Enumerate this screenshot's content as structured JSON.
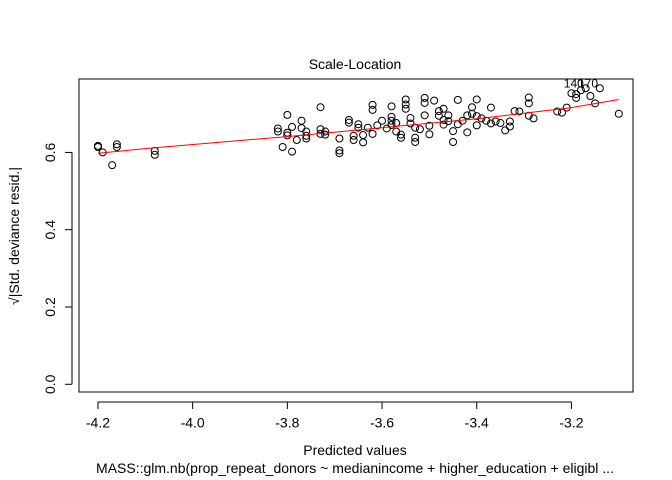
{
  "chart_data": {
    "type": "scatter",
    "title": "Scale-Location",
    "xlabel": "Predicted values",
    "ylabel": "√|Std. deviance resid.|",
    "ylabel_radicand": "Std. deviance resid.",
    "subtitle": "MASS::glm.nb(prop_repeat_donors ~ medianincome + higher_education + eligibl ...",
    "xlim": [
      -4.24,
      -3.07
    ],
    "ylim": [
      -0.02,
      0.79
    ],
    "x_ticks": [
      -4.2,
      -4.0,
      -3.8,
      -3.6,
      -3.4,
      -3.2
    ],
    "x_tick_labels": [
      "-4.2",
      "-4.0",
      "-3.8",
      "-3.6",
      "-3.4",
      "-3.2"
    ],
    "y_ticks": [
      0.0,
      0.2,
      0.4,
      0.6
    ],
    "y_tick_labels": [
      "0.0",
      "0.2",
      "0.4",
      "0.6"
    ],
    "grid": false,
    "smoother_color": "#ff0000",
    "point_color": "#000000",
    "smoother": {
      "x": [
        -4.2,
        -4.08,
        -3.8,
        -3.6,
        -3.4,
        -3.2,
        -3.1
      ],
      "y": [
        0.598,
        0.612,
        0.641,
        0.664,
        0.687,
        0.716,
        0.737
      ]
    },
    "annotations": [
      {
        "text": "140",
        "x": -3.195,
        "y": 0.768
      },
      {
        "text": "170",
        "x": -3.165,
        "y": 0.768
      }
    ],
    "points": [
      [
        -4.2,
        0.617
      ],
      [
        -4.2,
        0.614
      ],
      [
        -4.19,
        0.6
      ],
      [
        -4.17,
        0.567
      ],
      [
        -4.16,
        0.621
      ],
      [
        -4.16,
        0.614
      ],
      [
        -4.08,
        0.604
      ],
      [
        -4.08,
        0.594
      ],
      [
        -3.82,
        0.662
      ],
      [
        -3.82,
        0.654
      ],
      [
        -3.81,
        0.614
      ],
      [
        -3.8,
        0.697
      ],
      [
        -3.8,
        0.651
      ],
      [
        -3.8,
        0.644
      ],
      [
        -3.79,
        0.602
      ],
      [
        -3.79,
        0.666
      ],
      [
        -3.78,
        0.632
      ],
      [
        -3.77,
        0.682
      ],
      [
        -3.77,
        0.663
      ],
      [
        -3.76,
        0.654
      ],
      [
        -3.76,
        0.643
      ],
      [
        -3.76,
        0.636
      ],
      [
        -3.73,
        0.717
      ],
      [
        -3.73,
        0.66
      ],
      [
        -3.73,
        0.648
      ],
      [
        -3.72,
        0.654
      ],
      [
        -3.72,
        0.646
      ],
      [
        -3.69,
        0.636
      ],
      [
        -3.69,
        0.605
      ],
      [
        -3.69,
        0.598
      ],
      [
        -3.67,
        0.684
      ],
      [
        -3.67,
        0.677
      ],
      [
        -3.66,
        0.643
      ],
      [
        -3.66,
        0.632
      ],
      [
        -3.65,
        0.673
      ],
      [
        -3.65,
        0.664
      ],
      [
        -3.64,
        0.645
      ],
      [
        -3.64,
        0.626
      ],
      [
        -3.63,
        0.664
      ],
      [
        -3.62,
        0.723
      ],
      [
        -3.62,
        0.71
      ],
      [
        -3.62,
        0.648
      ],
      [
        -3.61,
        0.67
      ],
      [
        -3.6,
        0.682
      ],
      [
        -3.59,
        0.662
      ],
      [
        -3.58,
        0.719
      ],
      [
        -3.58,
        0.692
      ],
      [
        -3.58,
        0.682
      ],
      [
        -3.58,
        0.671
      ],
      [
        -3.57,
        0.654
      ],
      [
        -3.57,
        0.676
      ],
      [
        -3.56,
        0.638
      ],
      [
        -3.56,
        0.646
      ],
      [
        -3.55,
        0.737
      ],
      [
        -3.55,
        0.724
      ],
      [
        -3.55,
        0.713
      ],
      [
        -3.54,
        0.689
      ],
      [
        -3.54,
        0.675
      ],
      [
        -3.53,
        0.638
      ],
      [
        -3.53,
        0.627
      ],
      [
        -3.53,
        0.664
      ],
      [
        -3.52,
        0.66
      ],
      [
        -3.51,
        0.741
      ],
      [
        -3.51,
        0.728
      ],
      [
        -3.51,
        0.696
      ],
      [
        -3.5,
        0.669
      ],
      [
        -3.5,
        0.647
      ],
      [
        -3.49,
        0.734
      ],
      [
        -3.48,
        0.707
      ],
      [
        -3.48,
        0.695
      ],
      [
        -3.47,
        0.684
      ],
      [
        -3.47,
        0.672
      ],
      [
        -3.47,
        0.713
      ],
      [
        -3.46,
        0.696
      ],
      [
        -3.46,
        0.681
      ],
      [
        -3.45,
        0.655
      ],
      [
        -3.45,
        0.627
      ],
      [
        -3.44,
        0.736
      ],
      [
        -3.44,
        0.673
      ],
      [
        -3.43,
        0.682
      ],
      [
        -3.42,
        0.652
      ],
      [
        -3.42,
        0.696
      ],
      [
        -3.41,
        0.717
      ],
      [
        -3.41,
        0.7
      ],
      [
        -3.4,
        0.737
      ],
      [
        -3.4,
        0.694
      ],
      [
        -3.4,
        0.67
      ],
      [
        -3.39,
        0.688
      ],
      [
        -3.38,
        0.682
      ],
      [
        -3.37,
        0.716
      ],
      [
        -3.37,
        0.675
      ],
      [
        -3.36,
        0.68
      ],
      [
        -3.35,
        0.676
      ],
      [
        -3.34,
        0.657
      ],
      [
        -3.33,
        0.68
      ],
      [
        -3.33,
        0.667
      ],
      [
        -3.32,
        0.707
      ],
      [
        -3.31,
        0.706
      ],
      [
        -3.29,
        0.742
      ],
      [
        -3.29,
        0.727
      ],
      [
        -3.29,
        0.695
      ],
      [
        -3.28,
        0.688
      ],
      [
        -3.23,
        0.706
      ],
      [
        -3.22,
        0.703
      ],
      [
        -3.21,
        0.716
      ],
      [
        -3.2,
        0.753
      ],
      [
        -3.19,
        0.741
      ],
      [
        -3.19,
        0.751
      ],
      [
        -3.18,
        0.761
      ],
      [
        -3.17,
        0.766
      ],
      [
        -3.16,
        0.746
      ],
      [
        -3.15,
        0.727
      ],
      [
        -3.14,
        0.766
      ],
      [
        -3.1,
        0.7
      ]
    ]
  }
}
